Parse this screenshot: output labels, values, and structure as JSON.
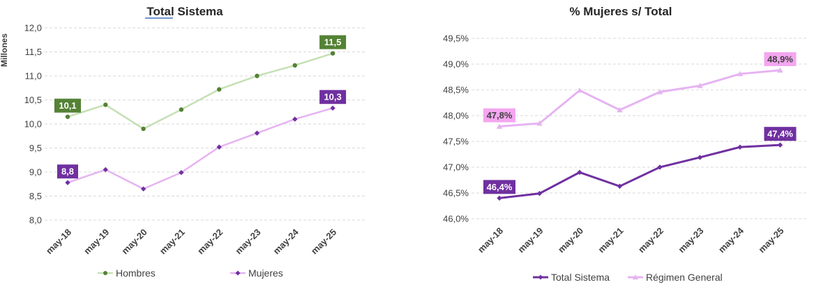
{
  "chart_data": [
    {
      "type": "line",
      "title": "Total Sistema",
      "ylabel": "Millones",
      "categories": [
        "may-18",
        "may-19",
        "may-20",
        "may-21",
        "may-22",
        "may-23",
        "may-24",
        "may-25"
      ],
      "ylim": [
        8.0,
        12.0
      ],
      "yticks": [
        "8,0",
        "8,5",
        "9,0",
        "9,5",
        "10,0",
        "10,5",
        "11,0",
        "11,5",
        "12,0"
      ],
      "grid": true,
      "legend_position": "bottom",
      "series": [
        {
          "name": "Hombres",
          "color": "#c5e0b4",
          "marker_color": "#548235",
          "marker": "circle",
          "values": [
            10.15,
            10.4,
            9.9,
            10.3,
            10.72,
            11.0,
            11.22,
            11.47
          ],
          "labels": [
            {
              "index": 0,
              "text": "10,1"
            },
            {
              "index": 7,
              "text": "11,5"
            }
          ],
          "label_bg": "#548235",
          "label_color": "#ffffff"
        },
        {
          "name": "Mujeres",
          "color": "#e6b3f2",
          "marker_color": "#7030a0",
          "marker": "diamond",
          "values": [
            8.78,
            9.05,
            8.65,
            8.99,
            9.52,
            9.81,
            10.1,
            10.33
          ],
          "labels": [
            {
              "index": 0,
              "text": "8,8"
            },
            {
              "index": 7,
              "text": "10,3"
            }
          ],
          "label_bg": "#7030a0",
          "label_color": "#ffffff"
        }
      ]
    },
    {
      "type": "line",
      "title": "% Mujeres s/ Total",
      "categories": [
        "may-18",
        "may-19",
        "may-20",
        "may-21",
        "may-22",
        "may-23",
        "may-24",
        "may-25"
      ],
      "ylim": [
        46.0,
        49.5
      ],
      "yticks": [
        "46,0%",
        "46,5%",
        "47,0%",
        "47,5%",
        "48,0%",
        "48,5%",
        "49,0%",
        "49,5%"
      ],
      "grid": true,
      "legend_position": "bottom",
      "series": [
        {
          "name": "Total Sistema",
          "color": "#7030a0",
          "marker_color": "#7030a0",
          "marker": "diamond",
          "values": [
            46.4,
            46.49,
            46.9,
            46.63,
            47.0,
            47.19,
            47.39,
            47.43
          ],
          "labels": [
            {
              "index": 0,
              "text": "46,4%"
            },
            {
              "index": 7,
              "text": "47,4%"
            }
          ],
          "label_bg": "#7030a0",
          "label_color": "#ffffff"
        },
        {
          "name": "Régimen General",
          "color": "#e6b3f2",
          "marker_color": "#e6b3f2",
          "marker": "triangle",
          "values": [
            47.79,
            47.85,
            48.49,
            48.11,
            48.46,
            48.58,
            48.81,
            48.88
          ],
          "labels": [
            {
              "index": 0,
              "text": "47,8%"
            },
            {
              "index": 7,
              "text": "48,9%"
            }
          ],
          "label_bg": "#f4a6f0",
          "label_color": "#404040"
        }
      ]
    }
  ]
}
